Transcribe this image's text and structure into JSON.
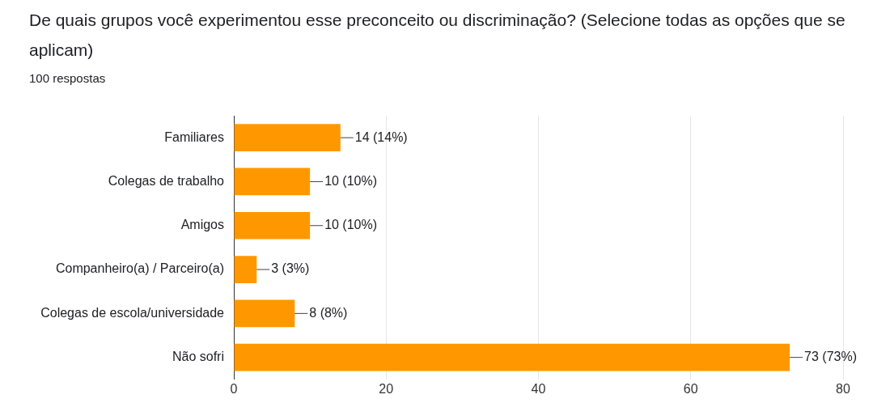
{
  "chart_data": {
    "type": "bar",
    "orientation": "horizontal",
    "title": "De quais grupos você experimentou esse preconceito ou discriminação? (Selecione todas as opções que se aplicam)",
    "subtitle": "100 respostas",
    "categories": [
      "Familiares",
      "Colegas de trabalho",
      "Amigos",
      "Companheiro(a) / Parceiro(a)",
      "Colegas de escola/universidade",
      "Não sofri"
    ],
    "values": [
      14,
      10,
      10,
      3,
      8,
      73
    ],
    "value_labels": [
      "14 (14%)",
      "10 (10%)",
      "10 (10%)",
      "3 (3%)",
      "8 (8%)",
      "73 (73%)"
    ],
    "color": "#ff9800",
    "xlim": [
      0,
      80
    ],
    "xticks": [
      0,
      20,
      40,
      60,
      80
    ],
    "grid": "x",
    "legend": false
  }
}
